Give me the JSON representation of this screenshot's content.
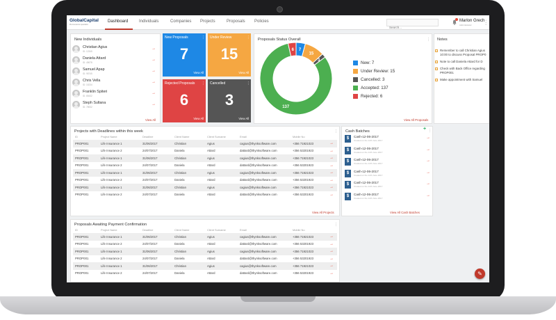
{
  "brand": {
    "name": "GlobalCapital",
    "tagline": "life insurance specialist"
  },
  "nav": {
    "tabs": [
      "Dashboard",
      "Individuals",
      "Companies",
      "Projects",
      "Proposals",
      "Policies"
    ],
    "active": "Dashboard",
    "search_placeholder": "Search...",
    "user_name": "Marlon Grech",
    "user_role": "Administrator"
  },
  "new_individuals": {
    "title": "New Individuals",
    "items": [
      {
        "name": "Christian Agius",
        "id": "ID: 12345"
      },
      {
        "name": "Daniela Attard",
        "id": "ID: 45678"
      },
      {
        "name": "Samuel Apap",
        "id": "ID: 98745"
      },
      {
        "name": "Chris Vella",
        "id": "ID: 15234"
      },
      {
        "name": "Franklin Spiteri",
        "id": "ID: 65432"
      },
      {
        "name": "Steph Sultana",
        "id": "ID: 78932"
      }
    ],
    "view_all": "View All"
  },
  "status_tiles": [
    {
      "title": "New Proposals",
      "value": "7",
      "color": "#1e88e5",
      "view_all": "View All"
    },
    {
      "title": "Under Review",
      "value": "15",
      "color": "#f5a742",
      "view_all": "View All"
    },
    {
      "title": "Rejected Proposals",
      "value": "6",
      "color": "#df4444",
      "view_all": "View All"
    },
    {
      "title": "Cancelled",
      "value": "3",
      "color": "#555555",
      "view_all": "View All"
    }
  ],
  "chart_data": {
    "type": "pie",
    "title": "Proposals Status Overall",
    "donut": true,
    "categories": [
      "New",
      "Under Review",
      "Cancelled",
      "Accepted",
      "Rejected"
    ],
    "values": [
      7,
      15,
      3,
      137,
      6
    ],
    "colors": [
      "#1e88e5",
      "#f5a742",
      "#555555",
      "#4caf50",
      "#df4444"
    ],
    "legend_labels": [
      "New:  7",
      "Under Review: 15",
      "Cancelled: 3",
      "Accepted: 137",
      "Rejected: 6"
    ],
    "slice_labels": [
      "7",
      "15",
      "3",
      "137",
      "6"
    ],
    "legend_position": "right"
  },
  "proposals_view_all": "View All Proposals",
  "notes": {
    "title": "Notes",
    "items": [
      "Remember to call Christian Agius",
      "10:00 to discuss Proposal PROP0",
      "Note to call Daniela Attard for D",
      "Check with Back Office regarding",
      "PROP001",
      "Make appointment with Samuel"
    ]
  },
  "deadlines_table": {
    "title": "Projects with Deadlines within this week",
    "headers": [
      "ID",
      "Project Name",
      "Deadline",
      "Client Name",
      "Client Surname",
      "Email",
      "Mobile No"
    ],
    "rows": [
      [
        "PROP001",
        "Life Insurance 1",
        "31/06/2017",
        "Christian",
        "Agius",
        "cagius@thynksoftware.com",
        "+356 71921023"
      ],
      [
        "PROP001",
        "Life Insurance 2",
        "24/07/2017",
        "Daniela",
        "Attard",
        "dattard@thynksoftware.com",
        "+356 53201923"
      ],
      [
        "PROP001",
        "Life Insurance 1",
        "31/06/2017",
        "Christian",
        "Agius",
        "cagius@thynksoftware.com",
        "+356 71921023"
      ],
      [
        "PROP001",
        "Life Insurance 2",
        "24/07/2017",
        "Daniela",
        "Attard",
        "dattard@thynksoftware.com",
        "+356 53201923"
      ],
      [
        "PROP001",
        "Life Insurance 1",
        "31/06/2017",
        "Christian",
        "Agius",
        "cagius@thynksoftware.com",
        "+356 71921023"
      ],
      [
        "PROP001",
        "Life Insurance 2",
        "24/07/2017",
        "Daniela",
        "Attard",
        "dattard@thynksoftware.com",
        "+356 53201923"
      ],
      [
        "PROP001",
        "Life Insurance 1",
        "31/06/2017",
        "Christian",
        "Agius",
        "cagius@thynksoftware.com",
        "+356 71921023"
      ],
      [
        "PROP001",
        "Life Insurance 2",
        "24/07/2017",
        "Daniela",
        "Attard",
        "dattard@thynksoftware.com",
        "+356 53201923"
      ]
    ],
    "view_all": "View All Projects"
  },
  "cash_batches": {
    "title": "Cash Batches",
    "items": [
      {
        "name": "Cash-12-06-2017",
        "sub": "Created on the 12th June 2017"
      },
      {
        "name": "Cash-12-06-2017",
        "sub": "Created on the 12th June 2017"
      },
      {
        "name": "Cash-12-06-2017",
        "sub": "Created on the 12th June 2017"
      },
      {
        "name": "Cash-12-06-2017",
        "sub": "Created on the 12th June 2017"
      },
      {
        "name": "Cash-12-06-2017",
        "sub": "Created on the 12th June 2017"
      },
      {
        "name": "Cash-12-06-2017",
        "sub": "Created on the 12th June 2017"
      }
    ],
    "view_all": "View All Cash Batches"
  },
  "payment_table": {
    "title": "Proposals Awaiting Payment Confirmation",
    "headers": [
      "ID",
      "Project Name",
      "Deadline",
      "Client Name",
      "Client Surname",
      "Email",
      "Mobile No"
    ],
    "rows": [
      [
        "PROP001",
        "Life Insurance 1",
        "31/06/2017",
        "Christian",
        "Agius",
        "cagius@thynksoftware.com",
        "+356 71921023"
      ],
      [
        "PROP001",
        "Life Insurance 2",
        "24/07/2017",
        "Daniela",
        "Attard",
        "dattard@thynksoftware.com",
        "+356 53201923"
      ],
      [
        "PROP001",
        "Life Insurance 1",
        "31/06/2017",
        "Christian",
        "Agius",
        "cagius@thynksoftware.com",
        "+356 71921023"
      ],
      [
        "PROP001",
        "Life Insurance 2",
        "24/07/2017",
        "Daniela",
        "Attard",
        "dattard@thynksoftware.com",
        "+356 53201923"
      ],
      [
        "PROP001",
        "Life Insurance 1",
        "31/06/2017",
        "Christian",
        "Agius",
        "cagius@thynksoftware.com",
        "+356 71921023"
      ],
      [
        "PROP001",
        "Life Insurance 2",
        "24/07/2017",
        "Daniela",
        "Attard",
        "dattard@thynksoftware.com",
        "+356 53201923"
      ]
    ]
  },
  "fab_icon": "pencil-icon"
}
